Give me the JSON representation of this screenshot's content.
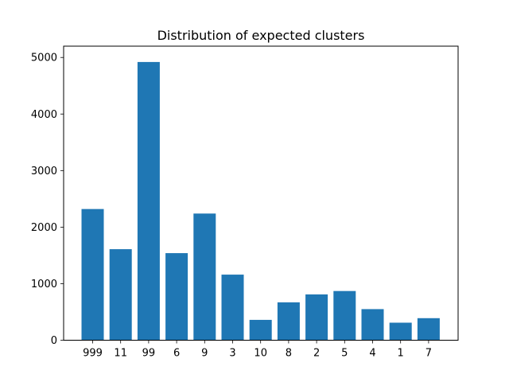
{
  "chart_data": {
    "type": "bar",
    "title": "Distribution of expected clusters",
    "xlabel": "",
    "ylabel": "",
    "categories": [
      "999",
      "11",
      "99",
      "6",
      "9",
      "3",
      "10",
      "8",
      "2",
      "5",
      "4",
      "1",
      "7"
    ],
    "values": [
      2320,
      1610,
      4920,
      1540,
      2240,
      1160,
      360,
      670,
      810,
      870,
      550,
      310,
      390
    ],
    "ylim": [
      0,
      5200
    ],
    "yticks": [
      0,
      1000,
      2000,
      3000,
      4000,
      5000
    ],
    "bar_color": "#1f77b4",
    "grid": false
  }
}
